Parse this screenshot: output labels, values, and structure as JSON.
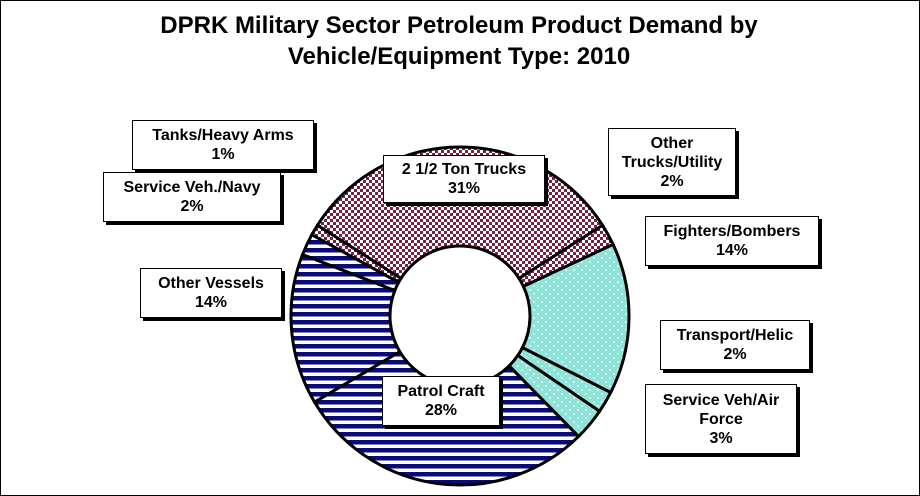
{
  "chart_data": {
    "type": "pie",
    "title_lines": [
      "DPRK Military Sector Petroleum Product Demand by",
      "Vehicle/Equipment Type: 2010"
    ],
    "slices": [
      {
        "label": "2 1/2 Ton Trucks",
        "value": 31,
        "pct_text": "31%",
        "pattern": "checker-maroon"
      },
      {
        "label": "Other Trucks/Utility",
        "value": 2,
        "pct_text": "2%",
        "pattern": "checker-maroon"
      },
      {
        "label": "Fighters/Bombers",
        "value": 14,
        "pct_text": "14%",
        "pattern": "dots-cyan"
      },
      {
        "label": "Transport/Helic",
        "value": 2,
        "pct_text": "2%",
        "pattern": "dots-cyan"
      },
      {
        "label": "Service Veh/Air Force",
        "value": 3,
        "pct_text": "3%",
        "pattern": "dots-cyan"
      },
      {
        "label": "Patrol Craft",
        "value": 28,
        "pct_text": "28%",
        "pattern": "stripes-navy"
      },
      {
        "label": "Other Vessels",
        "value": 14,
        "pct_text": "14%",
        "pattern": "stripes-navy"
      },
      {
        "label": "Service Veh./Navy",
        "value": 2,
        "pct_text": "2%",
        "pattern": "stripes-navy"
      },
      {
        "label": "Tanks/Heavy Arms",
        "value": 1,
        "pct_text": "1%",
        "pattern": "checker-maroon"
      }
    ],
    "label_lines": {
      "Other Trucks/Utility": [
        "Other",
        "Trucks/Utility"
      ],
      "Service Veh/Air Force": [
        "Service Veh/Air",
        "Force"
      ]
    },
    "colors": {
      "maroon": "#7a1f45",
      "cyan": "#8fe3d8",
      "navy": "#0a0a78",
      "outline": "#000000",
      "background": "#ffffff"
    }
  }
}
